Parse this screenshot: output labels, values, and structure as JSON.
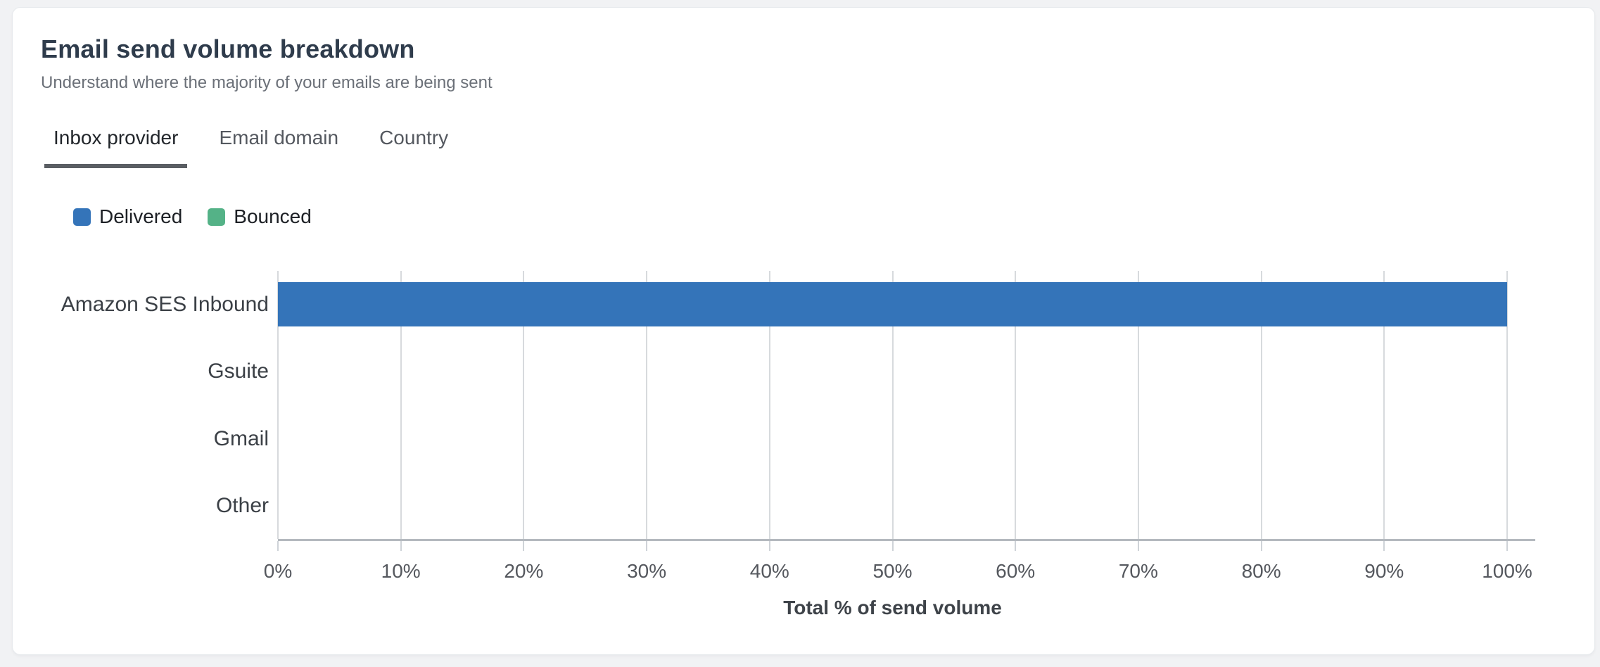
{
  "header": {
    "title": "Email send volume breakdown",
    "subtitle": "Understand where the majority of your emails are being sent"
  },
  "tabs": [
    {
      "label": "Inbox provider",
      "active": true
    },
    {
      "label": "Email domain",
      "active": false
    },
    {
      "label": "Country",
      "active": false
    }
  ],
  "chart_data": {
    "type": "bar",
    "orientation": "horizontal",
    "stacked": true,
    "categories": [
      "Amazon SES Inbound",
      "Gsuite",
      "Gmail",
      "Other"
    ],
    "series": [
      {
        "name": "Delivered",
        "color": "#3474B9",
        "values": [
          100,
          0,
          0,
          0
        ]
      },
      {
        "name": "Bounced",
        "color": "#54B287",
        "values": [
          0,
          0,
          0,
          0
        ]
      }
    ],
    "xlabel": "Total % of send volume",
    "ylabel": "",
    "xlim": [
      0,
      100
    ],
    "xticks": [
      0,
      10,
      20,
      30,
      40,
      50,
      60,
      70,
      80,
      90,
      100
    ],
    "xtick_format": "{v}%",
    "grid": "vertical",
    "legend_position": "top-left",
    "legend_labels": [
      "Delivered",
      "Bounced"
    ]
  }
}
